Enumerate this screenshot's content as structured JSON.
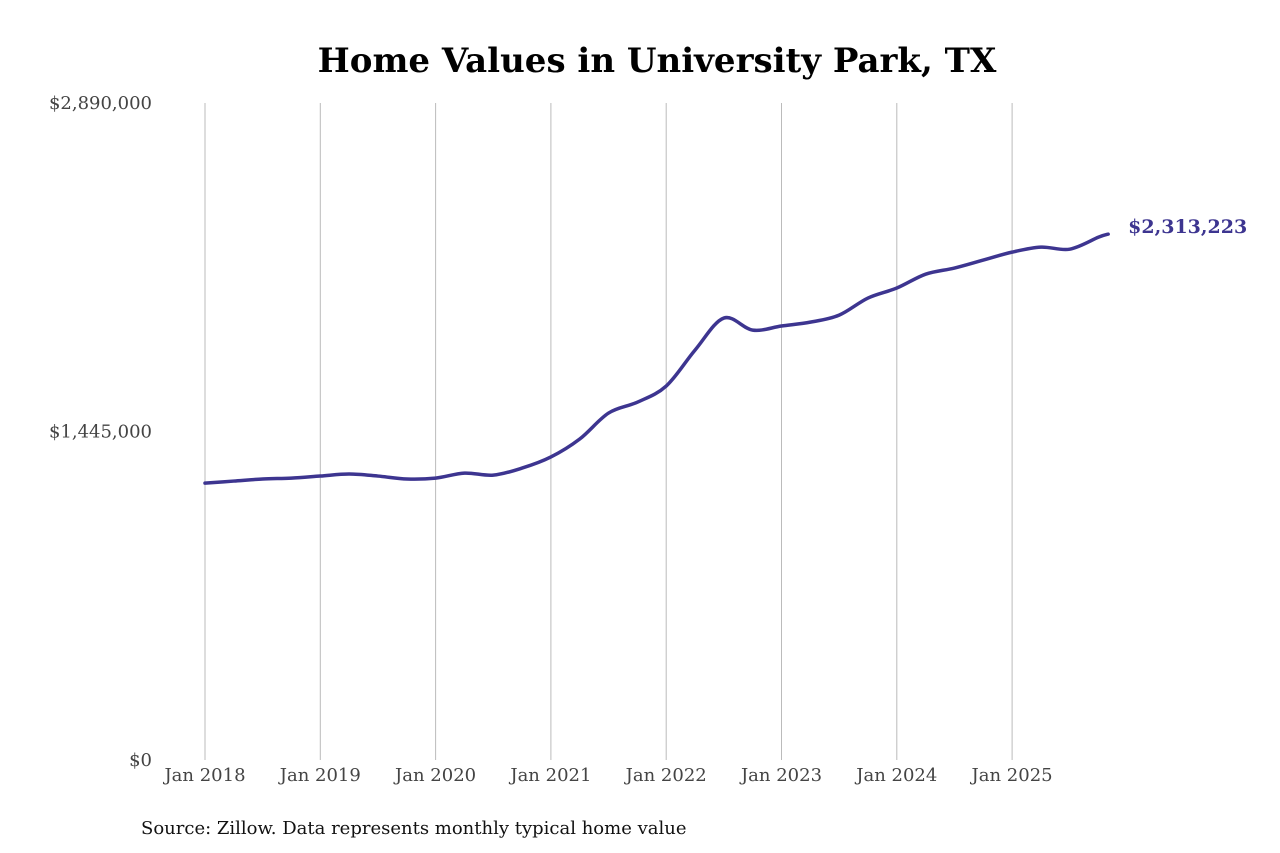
{
  "chart_data": {
    "type": "line",
    "title": "Home Values in University Park, TX",
    "source": "Source: Zillow. Data represents monthly typical home value",
    "xlabel": "",
    "ylabel": "",
    "ylim": [
      0,
      2890000
    ],
    "y_ticks": [
      {
        "value": 0,
        "label": "$0"
      },
      {
        "value": 1445000,
        "label": "$1,445,000"
      },
      {
        "value": 2890000,
        "label": "$2,890,000"
      }
    ],
    "x_ticks": [
      {
        "value": "2018-01",
        "label": "Jan 2018"
      },
      {
        "value": "2019-01",
        "label": "Jan 2019"
      },
      {
        "value": "2020-01",
        "label": "Jan 2020"
      },
      {
        "value": "2021-01",
        "label": "Jan 2021"
      },
      {
        "value": "2022-01",
        "label": "Jan 2022"
      },
      {
        "value": "2023-01",
        "label": "Jan 2023"
      },
      {
        "value": "2024-01",
        "label": "Jan 2024"
      },
      {
        "value": "2025-01",
        "label": "Jan 2025"
      }
    ],
    "grid": {
      "vertical": true,
      "horizontal": false
    },
    "line_color": "#3d3590",
    "end_label": "$2,313,223",
    "x": [
      "2018-01",
      "2018-04",
      "2018-07",
      "2018-10",
      "2019-01",
      "2019-04",
      "2019-07",
      "2019-10",
      "2020-01",
      "2020-04",
      "2020-07",
      "2020-10",
      "2021-01",
      "2021-04",
      "2021-07",
      "2021-10",
      "2022-01",
      "2022-04",
      "2022-07",
      "2022-10",
      "2023-01",
      "2023-04",
      "2023-07",
      "2023-10",
      "2024-01",
      "2024-04",
      "2024-07",
      "2024-10",
      "2025-01",
      "2025-04",
      "2025-07",
      "2025-10",
      "2025-11"
    ],
    "values": [
      1218000,
      1227000,
      1236000,
      1240000,
      1249000,
      1258000,
      1249000,
      1236000,
      1240000,
      1262000,
      1253000,
      1284000,
      1333000,
      1412000,
      1526000,
      1574000,
      1645000,
      1803000,
      1944000,
      1891000,
      1909000,
      1926000,
      1957000,
      2032000,
      2076000,
      2137000,
      2164000,
      2199000,
      2234000,
      2256000,
      2247000,
      2300000,
      2313223
    ]
  }
}
